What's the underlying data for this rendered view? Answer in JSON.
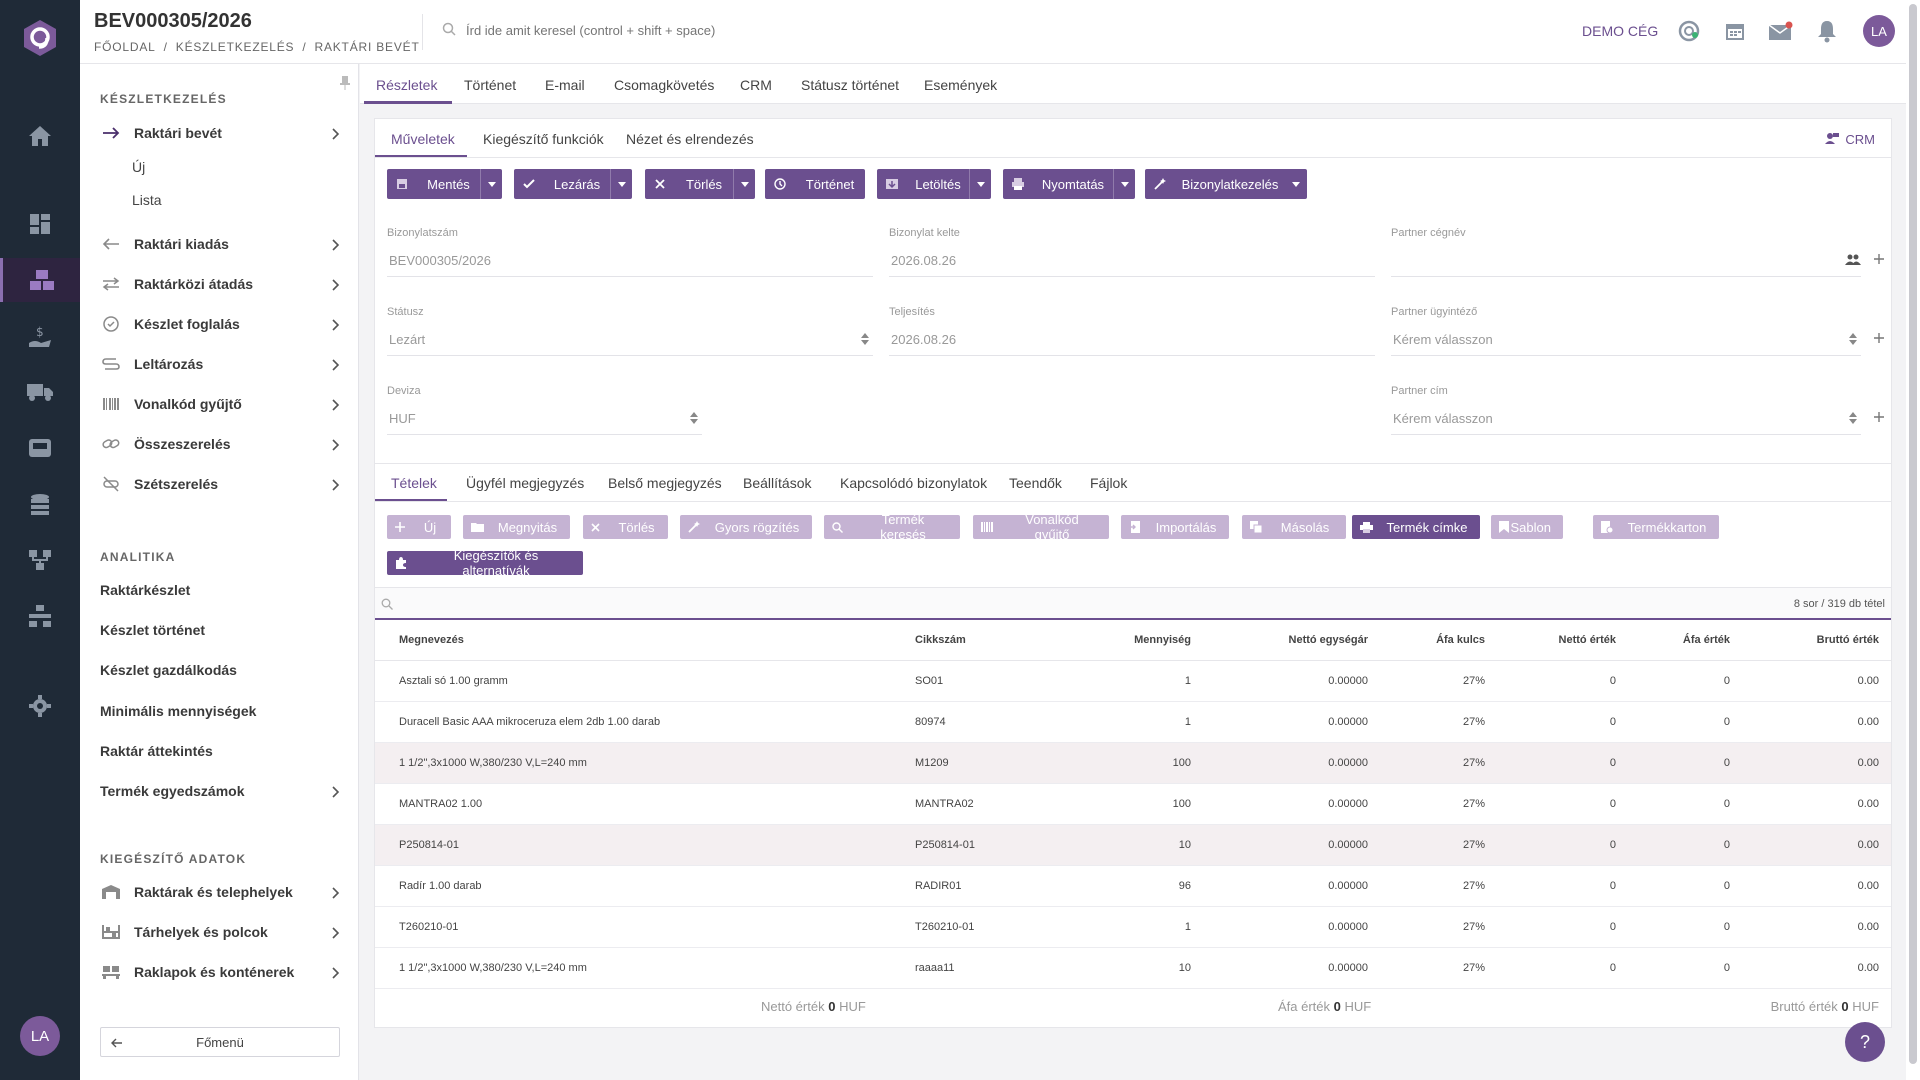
{
  "header": {
    "title": "BEV000305/2026",
    "breadcrumb": [
      "FŐOLDAL",
      "/",
      "KÉSZLETKEZELÉS",
      "/",
      "RAKTÁRI BEVÉT"
    ],
    "search_placeholder": "Írd ide amit keresel (control + shift + space)",
    "company": "DEMO CÉG",
    "user_initials": "LA"
  },
  "rail": {
    "user_initials": "LA",
    "icons": [
      "logo-icon",
      "home-icon",
      "dashboard-icon",
      "inventory-icon",
      "finance-icon",
      "truck-icon",
      "inbox-icon",
      "database-icon",
      "workflow-icon",
      "network-icon",
      "settings-icon"
    ]
  },
  "sidebar": {
    "section1": "KÉSZLETKEZELÉS",
    "items": [
      {
        "label": "Raktári bevét"
      },
      {
        "label": "Raktári kiadás"
      },
      {
        "label": "Raktárközi átadás"
      },
      {
        "label": "Készlet foglalás"
      },
      {
        "label": "Leltározás"
      },
      {
        "label": "Vonalkód gyűjtő"
      },
      {
        "label": "Összeszerelés"
      },
      {
        "label": "Szétszerelés"
      }
    ],
    "subitems": [
      "Új",
      "Lista"
    ],
    "section2": "ANALITIKA",
    "analytics": [
      "Raktárkészlet",
      "Készlet történet",
      "Készlet gazdálkodás",
      "Minimális mennyiségek",
      "Raktár áttekintés",
      "Termék egyedszámok"
    ],
    "section3": "KIEGÉSZÍTŐ ADATOK",
    "extra": [
      "Raktárak és telephelyek",
      "Tárhelyek és polcok",
      "Raklapok és konténerek"
    ],
    "back_button": "Főmenü"
  },
  "top_tabs": [
    "Részletek",
    "Történet",
    "E-mail",
    "Csomagkövetés",
    "CRM",
    "Státusz történet",
    "Események"
  ],
  "inner_tabs": [
    "Műveletek",
    "Kiegészítő funkciók",
    "Nézet és elrendezés"
  ],
  "crm_link": "CRM",
  "actions": [
    "Mentés",
    "Lezárás",
    "Törlés",
    "Történet",
    "Letöltés",
    "Nyomtatás",
    "Bizonylatkezelés"
  ],
  "form": {
    "doc_number_label": "Bizonylatszám",
    "doc_number": "BEV000305/2026",
    "doc_date_label": "Bizonylat kelte",
    "doc_date": "2026.08.26",
    "partner_label": "Partner cégnév",
    "partner": "",
    "status_label": "Státusz",
    "status": "Lezárt",
    "fulfil_label": "Teljesítés",
    "fulfil": "2026.08.26",
    "partner_agent_label": "Partner ügyintéző",
    "partner_agent": "Kérem válasszon",
    "currency_label": "Deviza",
    "currency": "HUF",
    "partner_address_label": "Partner cím",
    "partner_address": "Kérem válasszon"
  },
  "item_tabs": [
    "Tételek",
    "Ügyfél megjegyzés",
    "Belső megjegyzés",
    "Beállítások",
    "Kapcsolódó bizonylatok",
    "Teendők",
    "Fájlok"
  ],
  "item_buttons": [
    "Új",
    "Megnyitás",
    "Törlés",
    "Gyors rögzítés",
    "Termék keresés",
    "Vonalkód gyűjtő",
    "Importálás",
    "Másolás",
    "Termék címke",
    "Sablon",
    "Termékkarton",
    "Kiegészítők és alternatívák"
  ],
  "row_count": "8 sor / 319 db tétel",
  "columns": [
    "Megnevezés",
    "Cikkszám",
    "Mennyiség",
    "Nettó egységár",
    "Áfa kulcs",
    "Nettó érték",
    "Áfa érték",
    "Bruttó érték"
  ],
  "rows": [
    [
      "Asztali só 1.00 gramm",
      "SO01",
      "1",
      "0.00000",
      "27%",
      "0",
      "0",
      "0.00"
    ],
    [
      "Duracell Basic AAA mikroceruza elem 2db 1.00 darab",
      "80974",
      "1",
      "0.00000",
      "27%",
      "0",
      "0",
      "0.00"
    ],
    [
      "1 1/2\",3x1000 W,380/230 V,L=240 mm",
      "M1209",
      "100",
      "0.00000",
      "27%",
      "0",
      "0",
      "0.00"
    ],
    [
      "MANTRA02 1.00",
      "MANTRA02",
      "100",
      "0.00000",
      "27%",
      "0",
      "0",
      "0.00"
    ],
    [
      "P250814-01",
      "P250814-01",
      "10",
      "0.00000",
      "27%",
      "0",
      "0",
      "0.00"
    ],
    [
      "Radír 1.00 darab",
      "RADIR01",
      "96",
      "0.00000",
      "27%",
      "0",
      "0",
      "0.00"
    ],
    [
      "T260210-01",
      "T260210-01",
      "1",
      "0.00000",
      "27%",
      "0",
      "0",
      "0.00"
    ],
    [
      "1 1/2\",3x1000 W,380/230 V,L=240 mm",
      "raaaa11",
      "10",
      "0.00000",
      "27%",
      "0",
      "0",
      "0.00"
    ]
  ],
  "totals": {
    "net_label": "Nettó érték",
    "net_value": "0",
    "net_currency": "HUF",
    "vat_label": "Áfa érték",
    "vat_value": "0",
    "vat_currency": "HUF",
    "gross_label": "Bruttó érték",
    "gross_value": "0",
    "gross_currency": "HUF"
  },
  "help": "?",
  "colors": {
    "accent": "#6b4f8f",
    "rail": "#1f2a37",
    "light_button": "#c5b3d3"
  }
}
